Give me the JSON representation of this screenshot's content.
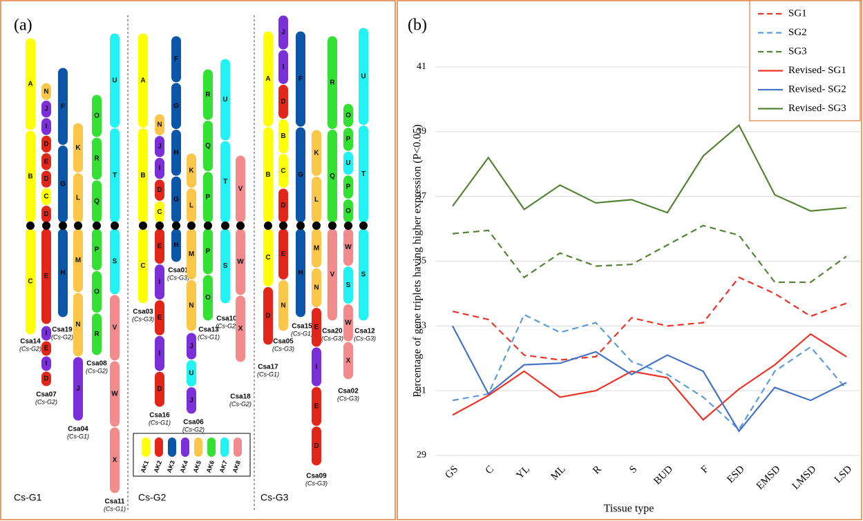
{
  "panel_a": {
    "label": "(a)",
    "groups": [
      "Cs-G1",
      "Cs-G2",
      "Cs-G3"
    ],
    "legend": [
      {
        "label": "AK1",
        "color": "#ffff00"
      },
      {
        "label": "AK2",
        "color": "#e3261a"
      },
      {
        "label": "AK3",
        "color": "#0b56a6"
      },
      {
        "label": "AK4",
        "color": "#7a2fd8"
      },
      {
        "label": "AK5",
        "color": "#fcc64a"
      },
      {
        "label": "AK6",
        "color": "#35e035"
      },
      {
        "label": "AK7",
        "color": "#22f2f2"
      },
      {
        "label": "AK8",
        "color": "#f28c8c"
      }
    ],
    "chromosomes": [
      {
        "name": "Csa14",
        "subgenome": "(Cs-G2)",
        "segments": [
          "A",
          "B",
          "C"
        ]
      },
      {
        "name": "Csa19",
        "subgenome": "(Cs-G2)",
        "segments": [
          "N",
          "J",
          "I",
          "D",
          "E",
          "D",
          "C",
          "D",
          "E"
        ]
      },
      {
        "name": "Csa07",
        "subgenome": "(Cs-G2)",
        "segments": [
          "I",
          "E",
          "I",
          "D"
        ]
      },
      {
        "segments": [
          "F",
          "G",
          "H"
        ]
      },
      {
        "name": "Csa04",
        "subgenome": "(Cs-G1)",
        "segments": [
          "K",
          "L",
          "M",
          "N",
          "J"
        ]
      },
      {
        "name": "Csa08",
        "subgenome": "(Cs-G2)",
        "segments": [
          "O",
          "R",
          "Q",
          "P",
          "O",
          "R"
        ]
      },
      {
        "name": "Csa11",
        "subgenome": "(Cs-G1)",
        "segments": [
          "U",
          "T",
          "S",
          "V",
          "W",
          "X"
        ]
      },
      {
        "name": "Csa03",
        "subgenome": "(Cs-G3)",
        "segments": [
          "A",
          "B",
          "C"
        ]
      },
      {
        "name": "Csa16",
        "subgenome": "(Cs-G1)",
        "segments": [
          "N",
          "J",
          "I",
          "D",
          "C",
          "E",
          "I",
          "E",
          "I",
          "D"
        ]
      },
      {
        "name": "Csa01",
        "subgenome": "(Cs-G3)",
        "segments": [
          "F",
          "G",
          "H",
          "G",
          "H"
        ]
      },
      {
        "name": "Csa13",
        "subgenome": "(Cs-G1)",
        "segments": [
          "K",
          "L",
          "M",
          "N"
        ]
      },
      {
        "name": "Csa06",
        "subgenome": "(Cs-G2)",
        "segments": [
          "J",
          "U",
          "J"
        ]
      },
      {
        "segments": [
          "R",
          "Q",
          "P",
          "P",
          "O"
        ]
      },
      {
        "name": "Csa10",
        "subgenome": "(Cs-G2)",
        "segments": [
          "U",
          "T",
          "S"
        ]
      },
      {
        "name": "Csa18",
        "subgenome": "(Cs-G2)",
        "segments": [
          "V",
          "W",
          "X"
        ]
      },
      {
        "name": "Csa17",
        "subgenome": "(Cs-G1)",
        "segments": [
          "A",
          "B",
          "C",
          "D"
        ]
      },
      {
        "name": "Csa05",
        "subgenome": "(Cs-G3)",
        "segments": [
          "J",
          "I",
          "D",
          "B",
          "C",
          "D",
          "E",
          "N"
        ]
      },
      {
        "name": "Csa15",
        "subgenome": "(Cs-G1)",
        "segments": [
          "F",
          "G",
          "H"
        ]
      },
      {
        "name": "Csa09",
        "subgenome": "(Cs-G3)",
        "segments": [
          "K",
          "L",
          "M",
          "N",
          "E",
          "I",
          "E",
          "D"
        ]
      },
      {
        "name": "Csa20",
        "subgenome": "(Cs-G3)",
        "segments": [
          "R",
          "Q",
          "V"
        ]
      },
      {
        "name": "Csa02",
        "subgenome": "(Cs-G3)",
        "segments": [
          "O",
          "P",
          "U",
          "P",
          "O",
          "W",
          "S",
          "W",
          "X"
        ]
      },
      {
        "name": "Csa12",
        "subgenome": "(Cs-G3)",
        "segments": [
          "U",
          "T",
          "S"
        ]
      }
    ]
  },
  "chart_data": {
    "type": "line",
    "panel_label": "(b)",
    "x_label": "Tissue type",
    "y_label": "Percentage of gene triplets having higher expression (P<0.05)",
    "categories": [
      "GS",
      "C",
      "YL",
      "ML",
      "R",
      "S",
      "BUD",
      "F",
      "ESD",
      "EMSD",
      "LMSD",
      "LSD"
    ],
    "ylim": [
      29,
      41
    ],
    "yticks": [
      29,
      31,
      33,
      35,
      37,
      39,
      41
    ],
    "grid": true,
    "legend": "top-right",
    "series": [
      {
        "name": "SG1",
        "color": "#ee3124",
        "dashed": true,
        "values": [
          33.45,
          33.2,
          32.1,
          31.95,
          32.05,
          33.25,
          33.0,
          33.1,
          34.5,
          34.0,
          33.3,
          33.7
        ]
      },
      {
        "name": "SG2",
        "color": "#5b9bd5",
        "dashed": true,
        "values": [
          30.7,
          30.9,
          33.35,
          32.8,
          33.1,
          31.9,
          31.5,
          30.8,
          29.8,
          31.6,
          32.35,
          31.05
        ]
      },
      {
        "name": "SG3",
        "color": "#548235",
        "dashed": true,
        "values": [
          35.85,
          35.95,
          34.5,
          35.25,
          34.85,
          34.9,
          35.5,
          36.1,
          35.8,
          34.35,
          34.35,
          35.15
        ]
      },
      {
        "name": "Revised- SG1",
        "color": "#ee3124",
        "dashed": false,
        "values": [
          30.25,
          30.85,
          31.6,
          30.8,
          31.0,
          31.6,
          31.4,
          30.1,
          31.05,
          31.8,
          32.75,
          32.05
        ]
      },
      {
        "name": "Revised- SG2",
        "color": "#4472c4",
        "dashed": false,
        "values": [
          33.0,
          30.9,
          31.8,
          31.85,
          32.2,
          31.5,
          32.1,
          31.6,
          29.75,
          31.1,
          30.7,
          31.25
        ]
      },
      {
        "name": "Revised- SG3",
        "color": "#548235",
        "dashed": false,
        "values": [
          36.7,
          38.2,
          36.6,
          37.35,
          36.8,
          36.9,
          36.5,
          38.25,
          39.2,
          37.05,
          36.55,
          36.65
        ]
      }
    ]
  }
}
